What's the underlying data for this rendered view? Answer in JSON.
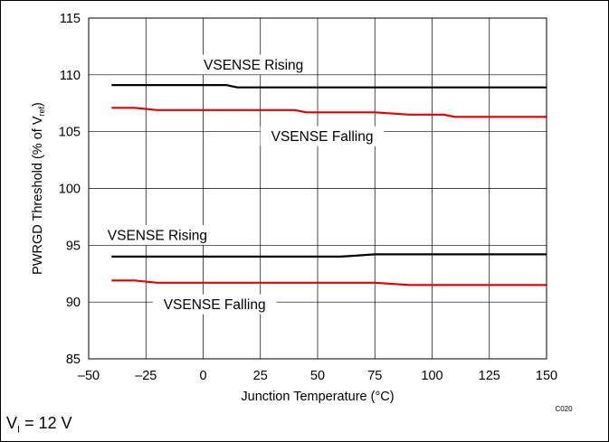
{
  "chart_data": {
    "type": "line",
    "xlabel": "Junction Temperature (°C)",
    "ylabel_parts": [
      "PWRGD Threshold (% of V",
      "ref",
      ")"
    ],
    "xlim": [
      -50,
      150
    ],
    "ylim": [
      85,
      115
    ],
    "xticks": [
      -50,
      -25,
      0,
      25,
      50,
      75,
      100,
      125,
      150
    ],
    "xtick_labels": [
      "–50",
      "–25",
      "0",
      "25",
      "50",
      "75",
      "100",
      "125",
      "150"
    ],
    "yticks": [
      85,
      90,
      95,
      100,
      105,
      110,
      115
    ],
    "ytick_labels": [
      "85",
      "90",
      "95",
      "100",
      "105",
      "110",
      "115"
    ],
    "grid": true,
    "series": [
      {
        "color": "#000000",
        "x": [
          -40,
          -30,
          -20,
          -10,
          0,
          10,
          15,
          25,
          40,
          60,
          75,
          90,
          110,
          130,
          150
        ],
        "y": [
          109.1,
          109.1,
          109.1,
          109.1,
          109.1,
          109.1,
          108.9,
          108.9,
          108.9,
          108.9,
          108.9,
          108.9,
          108.9,
          108.9,
          108.9
        ]
      },
      {
        "color": "#e00000",
        "x": [
          -40,
          -30,
          -20,
          0,
          25,
          40,
          45,
          60,
          75,
          90,
          105,
          110,
          130,
          150
        ],
        "y": [
          107.1,
          107.1,
          106.9,
          106.9,
          106.9,
          106.9,
          106.7,
          106.7,
          106.7,
          106.5,
          106.5,
          106.3,
          106.3,
          106.3
        ]
      },
      {
        "color": "#000000",
        "x": [
          -40,
          -25,
          0,
          25,
          50,
          60,
          75,
          100,
          125,
          150
        ],
        "y": [
          94.0,
          94.0,
          94.0,
          94.0,
          94.0,
          94.0,
          94.2,
          94.2,
          94.2,
          94.2
        ]
      },
      {
        "color": "#e00000",
        "x": [
          -40,
          -30,
          -20,
          0,
          25,
          50,
          75,
          90,
          110,
          130,
          150
        ],
        "y": [
          91.9,
          91.9,
          91.7,
          91.7,
          91.7,
          91.7,
          91.7,
          91.5,
          91.5,
          91.5,
          91.5
        ]
      }
    ],
    "annotations": [
      {
        "text": "VSENSE Rising",
        "x": 22,
        "y": 110.9
      },
      {
        "text": "VSENSE Falling",
        "x": 52,
        "y": 104.6
      },
      {
        "text": "VSENSE Rising",
        "x": -20,
        "y": 95.9
      },
      {
        "text": "VSENSE Falling",
        "x": 5,
        "y": 89.8
      }
    ],
    "code_label": "C020"
  },
  "footer": {
    "var": "V",
    "sub": "I",
    "rest": " = 12 V"
  }
}
